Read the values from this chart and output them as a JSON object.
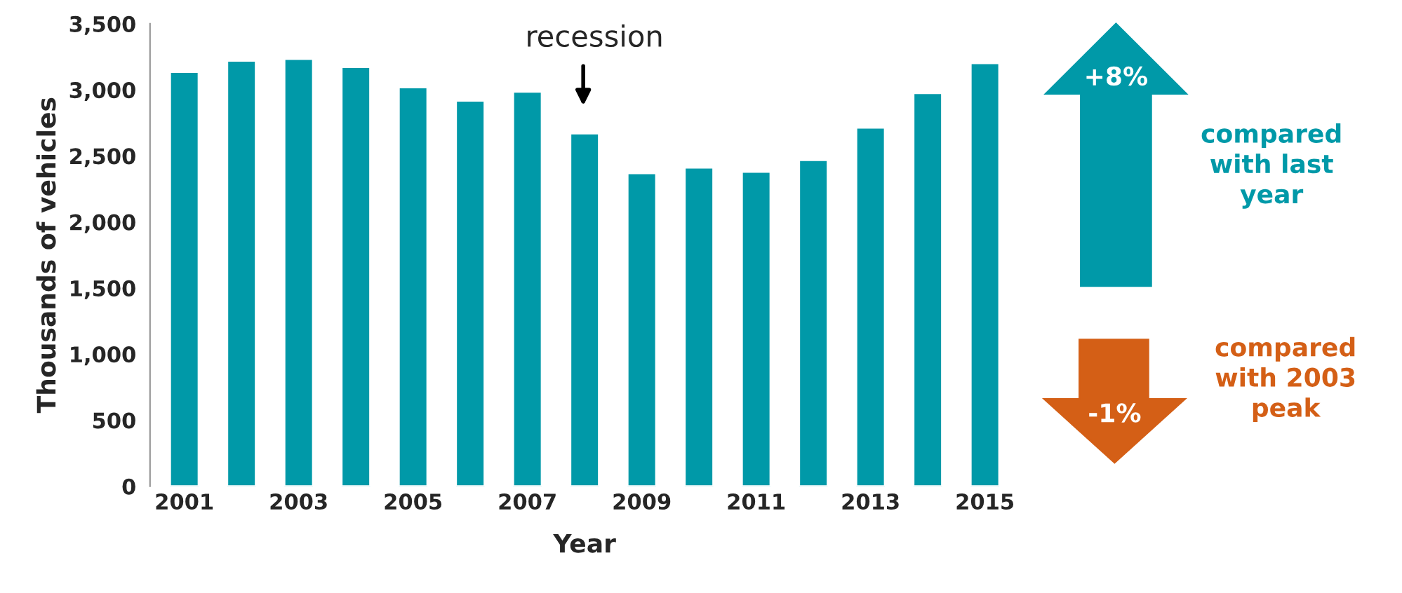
{
  "chart_data": {
    "type": "bar",
    "categories": [
      "2001",
      null,
      "2003",
      null,
      "2005",
      null,
      "2007",
      null,
      "2009",
      null,
      "2011",
      null,
      "2013",
      null,
      "2015"
    ],
    "series": [
      {
        "color": "#0099a8",
        "values": [
          3135,
          3220,
          3234,
          3173,
          3018,
          2918,
          2986,
          2670,
          2369,
          2411,
          2379,
          2468,
          2713,
          2975,
          3202
        ]
      }
    ],
    "xlabel": "Year",
    "ylabel": "Thousands of vehicles",
    "ylim": [
      0,
      3500
    ],
    "yticks": [
      0,
      500,
      {
        "value": 1000,
        "label": "1,000"
      },
      {
        "value": 1500,
        "label": "1,500"
      },
      {
        "value": 2000,
        "label": "2,000"
      },
      {
        "value": 2500,
        "label": "2,500"
      },
      {
        "value": 3000,
        "label": "3,000"
      },
      {
        "value": 3500,
        "label": "3,500"
      }
    ],
    "grid": false,
    "legend": false,
    "annotations": [
      "recession",
      "+8%",
      "compared\nwith last\nyear",
      "-1%",
      "compared\nwith 2003\npeak"
    ]
  }
}
